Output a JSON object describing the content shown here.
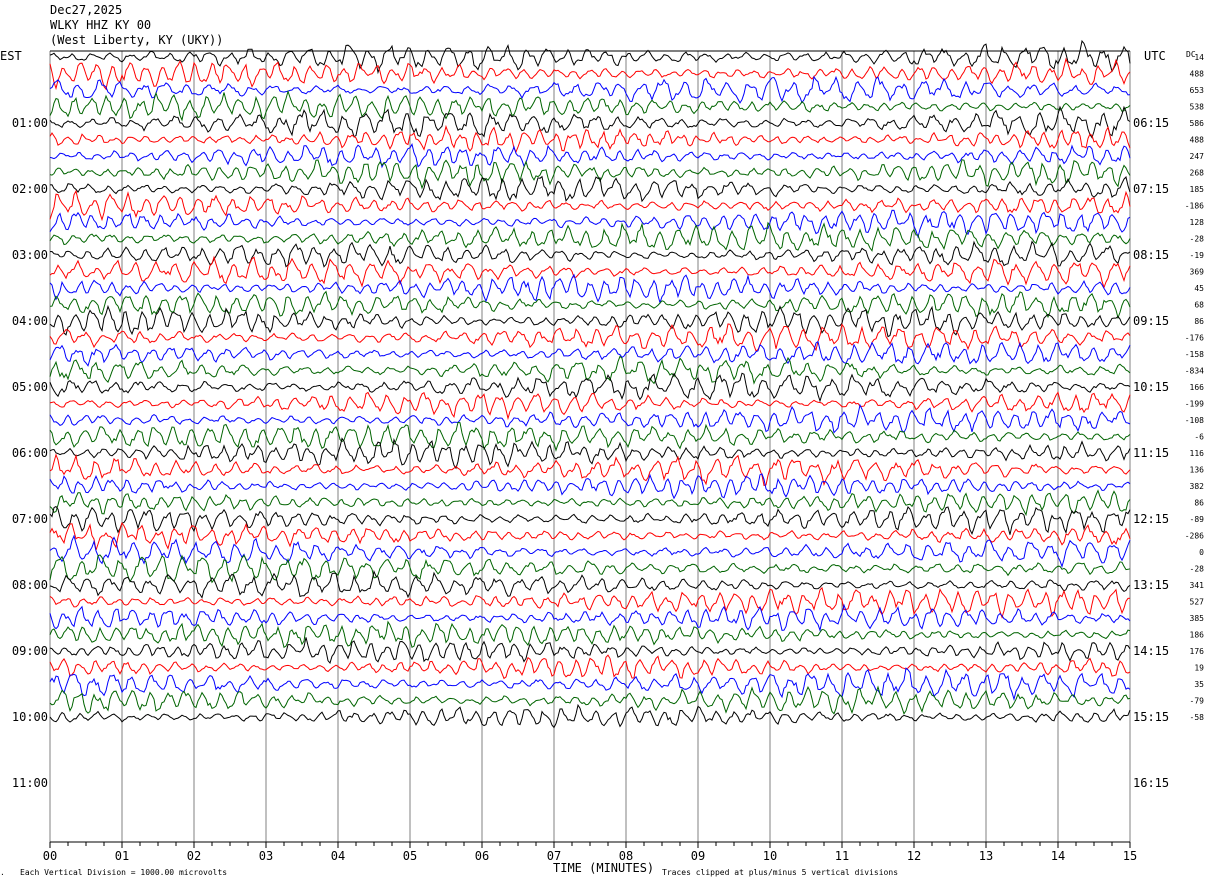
{
  "header": {
    "date": "Dec27,2025",
    "station": "WLKY HHZ KY 00",
    "location": "(West Liberty, KY (UKY))"
  },
  "left_tz": "EST",
  "right_tz": "UTC",
  "dc_label": "DC",
  "footer": {
    "left_note": "Each Vertical Division = 1000.00 microvolts",
    "xlabel": "TIME (MINUTES)",
    "right_note": "Traces clipped at plus/minus 5 vertical divisions"
  },
  "colors": {
    "cycle": [
      "#000000",
      "#ff0000",
      "#0000ff",
      "#006400"
    ],
    "grid": "#808080"
  },
  "chart_data": {
    "type": "line",
    "title": "WLKY HHZ KY 00",
    "xlabel": "TIME (MINUTES)",
    "xlim": [
      0,
      15
    ],
    "x_ticks": [
      "00",
      "01",
      "02",
      "03",
      "04",
      "05",
      "06",
      "07",
      "08",
      "09",
      "10",
      "11",
      "12",
      "13",
      "14",
      "15"
    ],
    "left_hour_labels": [
      "01:00",
      "02:00",
      "03:00",
      "04:00",
      "05:00",
      "06:00",
      "07:00",
      "08:00",
      "09:00",
      "10:00",
      "11:00"
    ],
    "right_hour_labels": [
      "06:15",
      "07:15",
      "08:15",
      "09:15",
      "10:15",
      "11:15",
      "12:15",
      "13:15",
      "14:15",
      "15:15",
      "16:15"
    ],
    "trace_count": 41,
    "dc_offsets": [
      "14",
      "488",
      "653",
      "538",
      "586",
      "488",
      "247",
      "268",
      "185",
      "-186",
      "128",
      "-28",
      "-19",
      "369",
      "45",
      "68",
      "86",
      "-176",
      "-158",
      "-834",
      "166",
      "-199",
      "-108",
      "-6",
      "116",
      "136",
      "382",
      "86",
      "-89",
      "-286",
      "0",
      "-28",
      "341",
      "527",
      "385",
      "186",
      "176",
      "19",
      "35",
      "-79",
      "-58"
    ]
  }
}
